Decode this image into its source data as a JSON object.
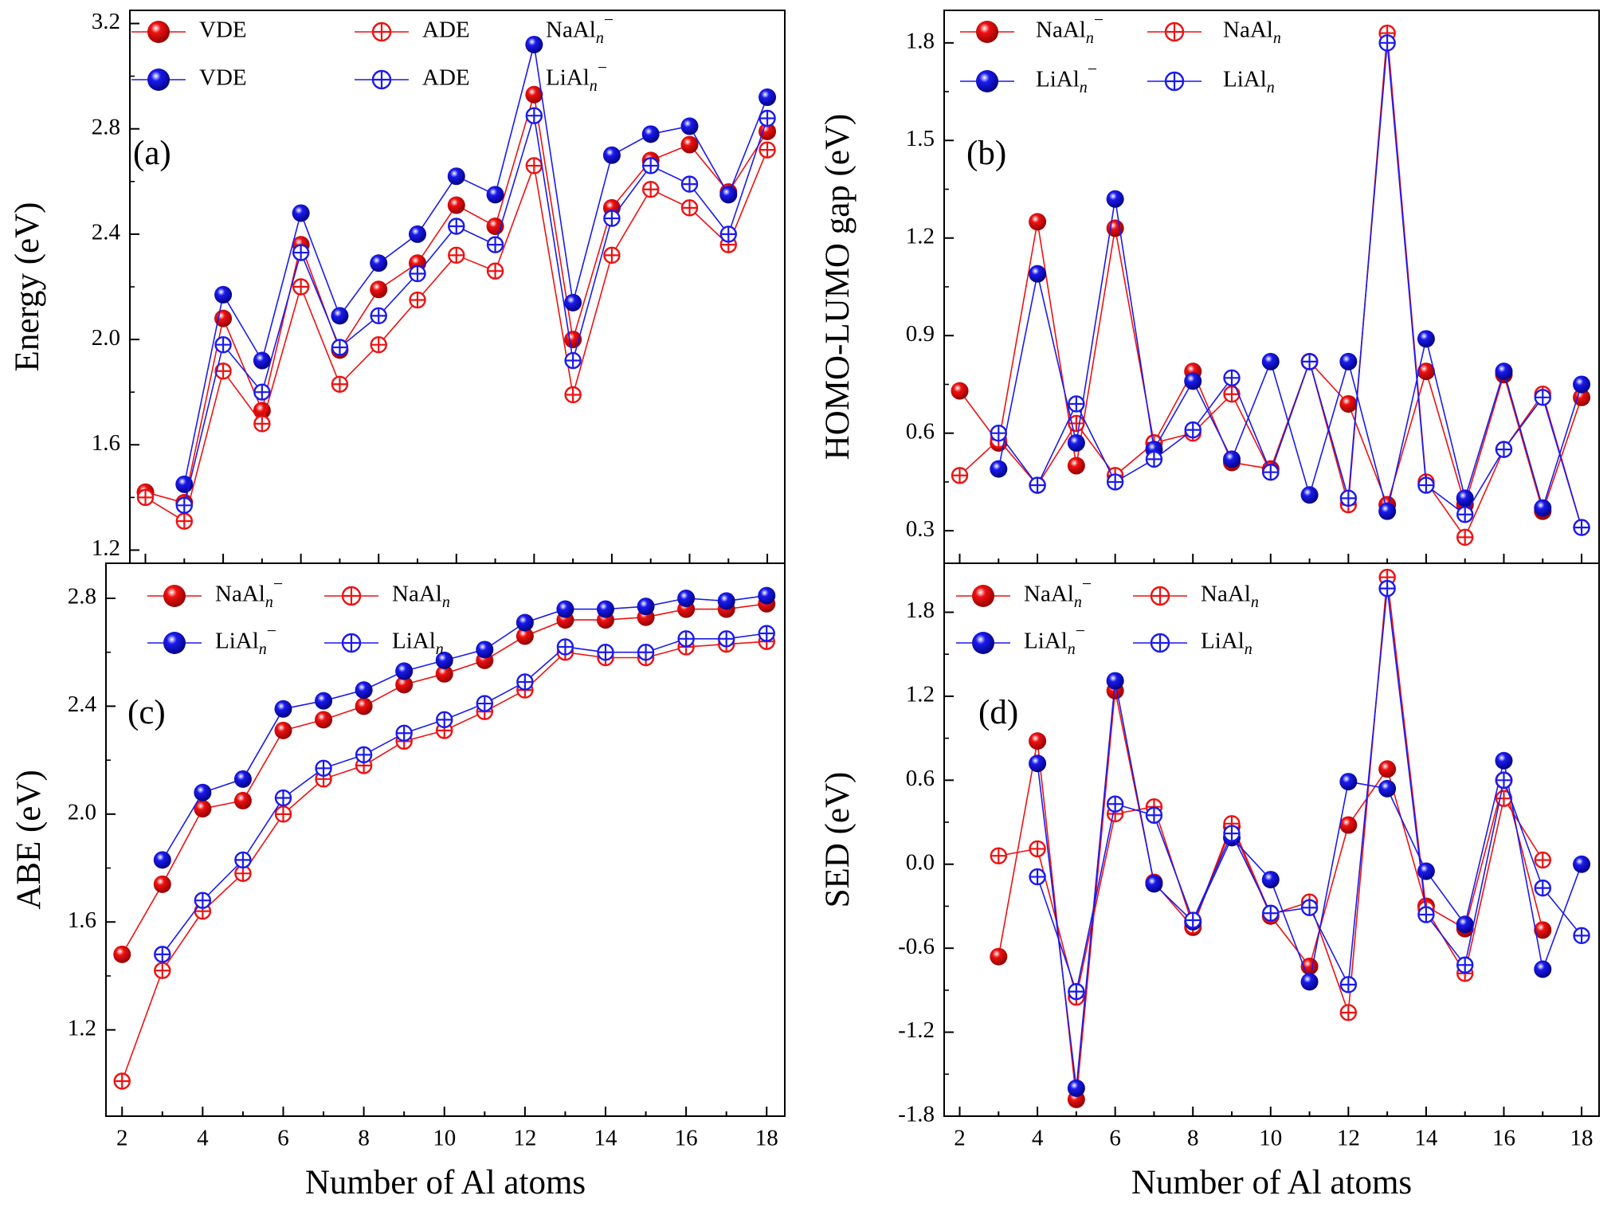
{
  "colors": {
    "na": "#ee1111",
    "li": "#1a1aee",
    "naDark": "#8a0000",
    "liDark": "#000078"
  },
  "chart_data": [
    {
      "type": "line",
      "panel_label": "(a)",
      "xlabel": "",
      "ylabel": "Energy (eV)",
      "xlim": [
        1.6,
        18.45
      ],
      "ylim": [
        1.15,
        3.25
      ],
      "yticks": [
        "1.2",
        "1.6",
        "2.0",
        "2.4",
        "2.8",
        "3.2"
      ],
      "ytick_values": [
        1.2,
        1.6,
        2.0,
        2.4,
        2.8,
        3.2
      ],
      "xticks": [
        2,
        4,
        6,
        8,
        10,
        12,
        14,
        16,
        18
      ],
      "legend_columns": 2,
      "legend": [
        {
          "label": "VDE",
          "color": "na",
          "marker": "ball"
        },
        {
          "label": "ADE",
          "color": "na",
          "marker": "cross"
        },
        {
          "label": "NaAl",
          "sub": "n",
          "sup": "−",
          "color": "none",
          "marker": "text"
        },
        {
          "label": "VDE",
          "color": "li",
          "marker": "ball"
        },
        {
          "label": "ADE",
          "color": "li",
          "marker": "cross"
        },
        {
          "label": "LiAl",
          "sub": "n",
          "sup": "−",
          "color": "none",
          "marker": "text"
        }
      ],
      "series": [
        {
          "color": "na",
          "marker": "ball",
          "x": [
            2,
            3,
            4,
            5,
            6,
            7,
            8,
            9,
            10,
            11,
            12,
            13,
            14,
            15,
            16,
            17,
            18
          ],
          "y": [
            1.42,
            1.38,
            2.08,
            1.73,
            2.36,
            1.96,
            2.19,
            2.29,
            2.51,
            2.43,
            2.93,
            2.0,
            2.5,
            2.68,
            2.74,
            2.56,
            2.79
          ]
        },
        {
          "color": "na",
          "marker": "cross",
          "x": [
            2,
            3,
            4,
            5,
            6,
            7,
            8,
            9,
            10,
            11,
            12,
            13,
            14,
            15,
            16,
            17,
            18
          ],
          "y": [
            1.4,
            1.31,
            1.88,
            1.68,
            2.2,
            1.83,
            1.98,
            2.15,
            2.32,
            2.26,
            2.66,
            1.79,
            2.32,
            2.57,
            2.5,
            2.36,
            2.72
          ]
        },
        {
          "color": "li",
          "marker": "ball",
          "x": [
            3,
            4,
            5,
            6,
            7,
            8,
            9,
            10,
            11,
            12,
            13,
            14,
            15,
            16,
            17,
            18
          ],
          "y": [
            1.45,
            2.17,
            1.92,
            2.48,
            2.09,
            2.29,
            2.4,
            2.62,
            2.55,
            3.12,
            2.14,
            2.7,
            2.78,
            2.81,
            2.55,
            2.92
          ]
        },
        {
          "color": "li",
          "marker": "cross",
          "x": [
            3,
            4,
            5,
            6,
            7,
            8,
            9,
            10,
            11,
            12,
            13,
            14,
            15,
            16,
            17,
            18
          ],
          "y": [
            1.37,
            1.98,
            1.8,
            2.33,
            1.97,
            2.09,
            2.25,
            2.43,
            2.36,
            2.85,
            1.92,
            2.46,
            2.66,
            2.59,
            2.4,
            2.84
          ]
        }
      ]
    },
    {
      "type": "line",
      "panel_label": "(b)",
      "xlabel": "",
      "ylabel": "HOMO-LUMO gap (eV)",
      "xlim": [
        1.6,
        18.45
      ],
      "ylim": [
        0.2,
        1.9
      ],
      "yticks": [
        "0.3",
        "0.6",
        "0.9",
        "1.2",
        "1.5",
        "1.8"
      ],
      "ytick_values": [
        0.3,
        0.6,
        0.9,
        1.2,
        1.5,
        1.8
      ],
      "xticks": [
        2,
        4,
        6,
        8,
        10,
        12,
        14,
        16,
        18
      ],
      "legend_columns": 2,
      "legend": [
        {
          "label": "NaAl",
          "sub": "n",
          "sup": "−",
          "color": "na",
          "marker": "ball"
        },
        {
          "label": "NaAl",
          "sub": "n",
          "sup": "",
          "color": "na",
          "marker": "cross"
        },
        {
          "label": "LiAl",
          "sub": "n",
          "sup": "−",
          "color": "li",
          "marker": "ball"
        },
        {
          "label": "LiAl",
          "sub": "n",
          "sup": "",
          "color": "li",
          "marker": "cross"
        }
      ],
      "series": [
        {
          "color": "na",
          "marker": "ball",
          "x": [
            2,
            3,
            4,
            5,
            6,
            7,
            8,
            9,
            10,
            11,
            12,
            13,
            14,
            15,
            16,
            17,
            18
          ],
          "y": [
            0.73,
            0.57,
            1.25,
            0.5,
            1.23,
            0.57,
            0.79,
            0.51,
            0.49,
            0.82,
            0.69,
            0.38,
            0.79,
            0.38,
            0.78,
            0.36,
            0.71
          ]
        },
        {
          "color": "na",
          "marker": "cross",
          "x": [
            2,
            3,
            4,
            5,
            6,
            7,
            8,
            9,
            10,
            11,
            12,
            13,
            14,
            15,
            16,
            17,
            18
          ],
          "y": [
            0.47,
            0.58,
            0.44,
            0.63,
            0.47,
            0.57,
            0.6,
            0.72,
            0.48,
            0.82,
            0.38,
            1.83,
            0.45,
            0.28,
            0.55,
            0.72,
            0.31
          ]
        },
        {
          "color": "li",
          "marker": "ball",
          "x": [
            3,
            4,
            5,
            6,
            7,
            8,
            9,
            10,
            11,
            12,
            13,
            14,
            15,
            16,
            17,
            18
          ],
          "y": [
            0.49,
            1.09,
            0.57,
            1.32,
            0.55,
            0.76,
            0.52,
            0.82,
            0.41,
            0.82,
            0.36,
            0.89,
            0.4,
            0.79,
            0.37,
            0.75
          ]
        },
        {
          "color": "li",
          "marker": "cross",
          "x": [
            3,
            4,
            5,
            6,
            7,
            8,
            9,
            10,
            11,
            12,
            13,
            14,
            15,
            16,
            17,
            18
          ],
          "y": [
            0.6,
            0.44,
            0.69,
            0.45,
            0.52,
            0.61,
            0.77,
            0.48,
            0.82,
            0.4,
            1.8,
            0.44,
            0.35,
            0.55,
            0.71,
            0.31
          ]
        }
      ]
    },
    {
      "type": "line",
      "panel_label": "(c)",
      "xlabel": "Number of Al atoms",
      "ylabel": "ABE (eV)",
      "xlim": [
        1.6,
        18.45
      ],
      "ylim": [
        0.88,
        2.93
      ],
      "yticks": [
        "1.2",
        "1.6",
        "2.0",
        "2.4",
        "2.8"
      ],
      "ytick_values": [
        1.2,
        1.6,
        2.0,
        2.4,
        2.8
      ],
      "xticks": [
        2,
        4,
        6,
        8,
        10,
        12,
        14,
        16,
        18
      ],
      "legend_columns": 2,
      "legend": [
        {
          "label": "NaAl",
          "sub": "n",
          "sup": "−",
          "color": "na",
          "marker": "ball"
        },
        {
          "label": "NaAl",
          "sub": "n",
          "sup": "",
          "color": "na",
          "marker": "cross"
        },
        {
          "label": "LiAl",
          "sub": "n",
          "sup": "−",
          "color": "li",
          "marker": "ball"
        },
        {
          "label": "LiAl",
          "sub": "n",
          "sup": "",
          "color": "li",
          "marker": "cross"
        }
      ],
      "series": [
        {
          "color": "na",
          "marker": "ball",
          "x": [
            2,
            3,
            4,
            5,
            6,
            7,
            8,
            9,
            10,
            11,
            12,
            13,
            14,
            15,
            16,
            17,
            18
          ],
          "y": [
            1.48,
            1.74,
            2.02,
            2.05,
            2.31,
            2.35,
            2.4,
            2.48,
            2.52,
            2.57,
            2.66,
            2.72,
            2.72,
            2.73,
            2.76,
            2.76,
            2.78
          ]
        },
        {
          "color": "na",
          "marker": "cross",
          "x": [
            2,
            3,
            4,
            5,
            6,
            7,
            8,
            9,
            10,
            11,
            12,
            13,
            14,
            15,
            16,
            17,
            18
          ],
          "y": [
            1.01,
            1.42,
            1.64,
            1.78,
            2.0,
            2.13,
            2.18,
            2.27,
            2.31,
            2.38,
            2.46,
            2.6,
            2.58,
            2.58,
            2.62,
            2.63,
            2.64
          ]
        },
        {
          "color": "li",
          "marker": "ball",
          "x": [
            3,
            4,
            5,
            6,
            7,
            8,
            9,
            10,
            11,
            12,
            13,
            14,
            15,
            16,
            17,
            18
          ],
          "y": [
            1.83,
            2.08,
            2.13,
            2.39,
            2.42,
            2.46,
            2.53,
            2.57,
            2.61,
            2.71,
            2.76,
            2.76,
            2.77,
            2.8,
            2.79,
            2.81
          ]
        },
        {
          "color": "li",
          "marker": "cross",
          "x": [
            3,
            4,
            5,
            6,
            7,
            8,
            9,
            10,
            11,
            12,
            13,
            14,
            15,
            16,
            17,
            18
          ],
          "y": [
            1.48,
            1.68,
            1.83,
            2.06,
            2.17,
            2.22,
            2.3,
            2.35,
            2.41,
            2.49,
            2.62,
            2.6,
            2.6,
            2.65,
            2.65,
            2.67
          ]
        }
      ]
    },
    {
      "type": "line",
      "panel_label": "(d)",
      "xlabel": "Number of Al atoms",
      "ylabel": "SED (eV)",
      "xlim": [
        1.6,
        18.45
      ],
      "ylim": [
        -1.8,
        2.15
      ],
      "yticks": [
        "-1.8",
        "-1.2",
        "-0.6",
        "0.0",
        "0.6",
        "1.2",
        "1.8"
      ],
      "ytick_values": [
        -1.8,
        -1.2,
        -0.6,
        0.0,
        0.6,
        1.2,
        1.8
      ],
      "xticks": [
        2,
        4,
        6,
        8,
        10,
        12,
        14,
        16,
        18
      ],
      "legend_columns": 2,
      "legend": [
        {
          "label": "NaAl",
          "sub": "n",
          "sup": "−",
          "color": "na",
          "marker": "ball"
        },
        {
          "label": "NaAl",
          "sub": "n",
          "sup": "",
          "color": "na",
          "marker": "cross"
        },
        {
          "label": "LiAl",
          "sub": "n",
          "sup": "−",
          "color": "li",
          "marker": "ball"
        },
        {
          "label": "LiAl",
          "sub": "n",
          "sup": "",
          "color": "li",
          "marker": "cross"
        }
      ],
      "series": [
        {
          "color": "na",
          "marker": "ball",
          "x": [
            3,
            4,
            5,
            6,
            7,
            8,
            9,
            10,
            11,
            12,
            13,
            14,
            15,
            16,
            17
          ],
          "y": [
            -0.66,
            0.88,
            -1.68,
            1.24,
            -0.13,
            -0.45,
            0.27,
            -0.37,
            -0.73,
            0.28,
            0.68,
            -0.3,
            -0.46,
            0.6,
            -0.47
          ]
        },
        {
          "color": "na",
          "marker": "cross",
          "x": [
            3,
            4,
            5,
            6,
            7,
            8,
            9,
            10,
            11,
            12,
            13,
            14,
            15,
            16,
            17
          ],
          "y": [
            0.06,
            0.11,
            -0.95,
            0.36,
            0.41,
            -0.44,
            0.29,
            -0.36,
            -0.27,
            -1.06,
            2.05,
            -0.32,
            -0.78,
            0.47,
            0.03
          ]
        },
        {
          "color": "li",
          "marker": "ball",
          "x": [
            4,
            5,
            6,
            7,
            8,
            9,
            10,
            11,
            12,
            13,
            14,
            15,
            16,
            17,
            18
          ],
          "y": [
            0.72,
            -1.6,
            1.31,
            -0.14,
            -0.41,
            0.19,
            -0.11,
            -0.84,
            0.59,
            0.54,
            -0.05,
            -0.43,
            0.74,
            -0.75,
            0.0
          ]
        },
        {
          "color": "li",
          "marker": "cross",
          "x": [
            4,
            5,
            6,
            7,
            8,
            9,
            10,
            11,
            12,
            13,
            14,
            15,
            16,
            17,
            18
          ],
          "y": [
            -0.09,
            -0.91,
            0.43,
            0.35,
            -0.4,
            0.22,
            -0.35,
            -0.31,
            -0.86,
            1.97,
            -0.36,
            -0.72,
            0.6,
            -0.17,
            -0.51
          ]
        }
      ]
    }
  ]
}
